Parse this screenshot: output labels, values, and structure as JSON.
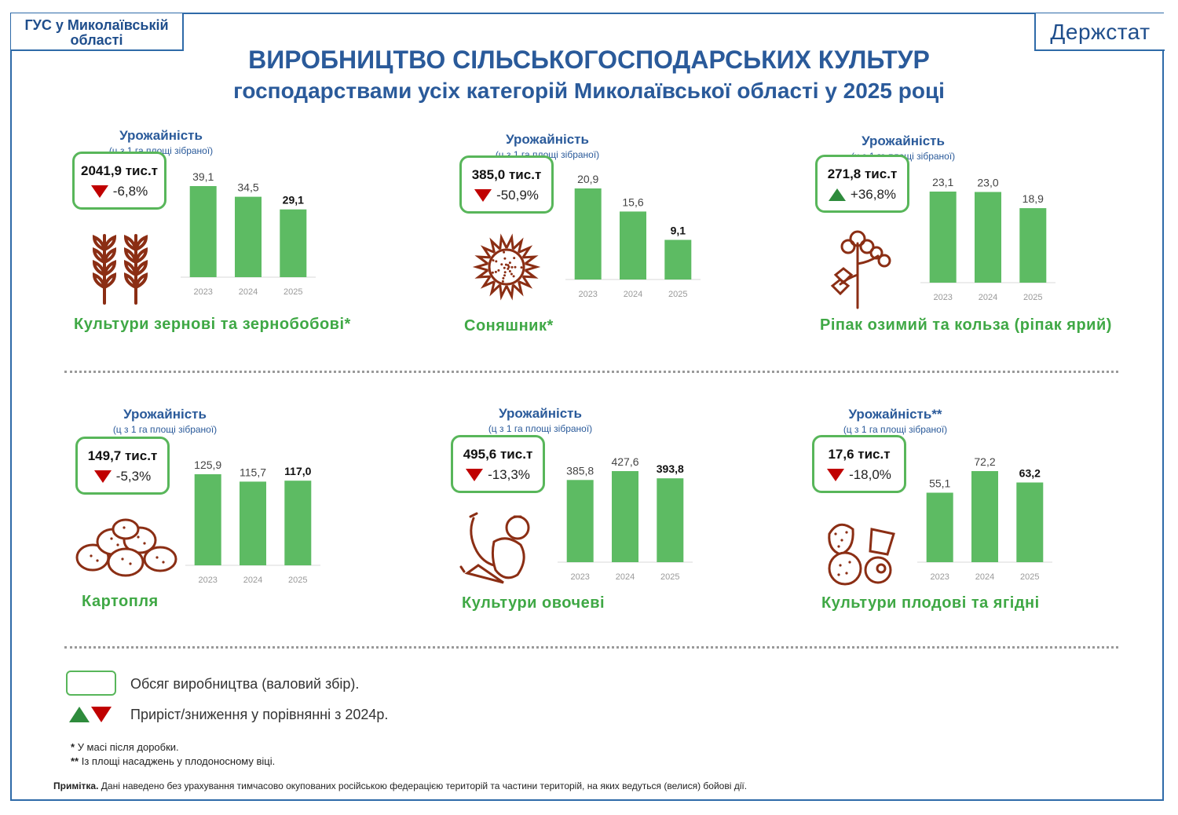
{
  "header": {
    "org": "ГУС у Миколаївській області",
    "brand": "Держстат",
    "title": "ВИРОБНИЦТВО СІЛЬСЬКОГОСПОДАРСЬКИХ КУЛЬТУР",
    "subtitle": "господарствами усіх категорій Миколаївської області у 2025 році"
  },
  "colors": {
    "bar": "#5dbb63",
    "accent_blue": "#2a5a9a",
    "up": "#2e8b3c",
    "down": "#c00000",
    "label_green": "#3fa845"
  },
  "chart_data": [
    {
      "type": "bar",
      "crop": "Культури зернові та зернобобові*",
      "yield_title": "Урожайність",
      "yield_sub": "(ц з 1 га площі зібраної)",
      "volume": "2041,9 тис.т",
      "change": "-6,8%",
      "direction": "down",
      "icon": "wheat-icon",
      "categories": [
        "2023",
        "2024",
        "2025"
      ],
      "values": [
        39.1,
        34.5,
        29.1
      ],
      "value_labels": [
        "39,1",
        "34,5",
        "29,1"
      ],
      "highlight_last": true
    },
    {
      "type": "bar",
      "crop": "Соняшник*",
      "yield_title": "Урожайність",
      "yield_sub": "(ц з 1 га площі зібраної)",
      "volume": "385,0 тис.т",
      "change": "-50,9%",
      "direction": "down",
      "icon": "sunflower-icon",
      "categories": [
        "2023",
        "2024",
        "2025"
      ],
      "values": [
        20.9,
        15.6,
        9.1
      ],
      "value_labels": [
        "20,9",
        "15,6",
        "9,1"
      ],
      "highlight_last": true
    },
    {
      "type": "bar",
      "crop": "Ріпак озимий та кольза (ріпак ярий)",
      "yield_title": "Урожайність",
      "yield_sub": "(ц з 1 га площі зібраної)",
      "volume": "271,8 тис.т",
      "change": "+36,8%",
      "direction": "up",
      "icon": "rapeseed-icon",
      "categories": [
        "2023",
        "2024",
        "2025"
      ],
      "values": [
        23.1,
        23.0,
        18.9
      ],
      "value_labels": [
        "23,1",
        "23,0",
        "18,9"
      ],
      "highlight_last": false
    },
    {
      "type": "bar",
      "crop": "Картопля",
      "yield_title": "Урожайність",
      "yield_sub": "(ц з 1 га площі зібраної)",
      "volume": "149,7 тис.т",
      "change": "-5,3%",
      "direction": "down",
      "icon": "potato-icon",
      "categories": [
        "2023",
        "2024",
        "2025"
      ],
      "values": [
        125.9,
        115.7,
        117.0
      ],
      "value_labels": [
        "125,9",
        "115,7",
        "117,0"
      ],
      "highlight_last": true
    },
    {
      "type": "bar",
      "crop": "Культури овочеві",
      "yield_title": "Урожайність",
      "yield_sub": "(ц з 1 га площі зібраної)",
      "volume": "495,6 тис.т",
      "change": "-13,3%",
      "direction": "down",
      "icon": "vegetables-icon",
      "categories": [
        "2023",
        "2024",
        "2025"
      ],
      "values": [
        385.8,
        427.6,
        393.8
      ],
      "value_labels": [
        "385,8",
        "427,6",
        "393,8"
      ],
      "highlight_last": true
    },
    {
      "type": "bar",
      "crop": "Культури плодові та ягідні",
      "yield_title": "Урожайність**",
      "yield_sub": "(ц з 1 га площі зібраної)",
      "volume": "17,6 тис.т",
      "change": "-18,0%",
      "direction": "down",
      "icon": "fruits-icon",
      "categories": [
        "2023",
        "2024",
        "2025"
      ],
      "values": [
        55.1,
        72.2,
        63.2
      ],
      "value_labels": [
        "55,1",
        "72,2",
        "63,2"
      ],
      "highlight_last": true
    }
  ],
  "legend": {
    "volume": "Обсяг виробництва (валовий збір).",
    "change": "Приріст/зниження у порівнянні з 2024р."
  },
  "footnotes": {
    "f1_mark": "*",
    "f1": "У масі після доробки.",
    "f2_mark": "**",
    "f2": "Із площі насаджень у плодоносному віці."
  },
  "note": {
    "label": "Примітка.",
    "text": "Дані наведено без урахування тимчасово окупованих російською федерацією територій та частини територій, на яких ведуться (велися) бойові дії."
  }
}
